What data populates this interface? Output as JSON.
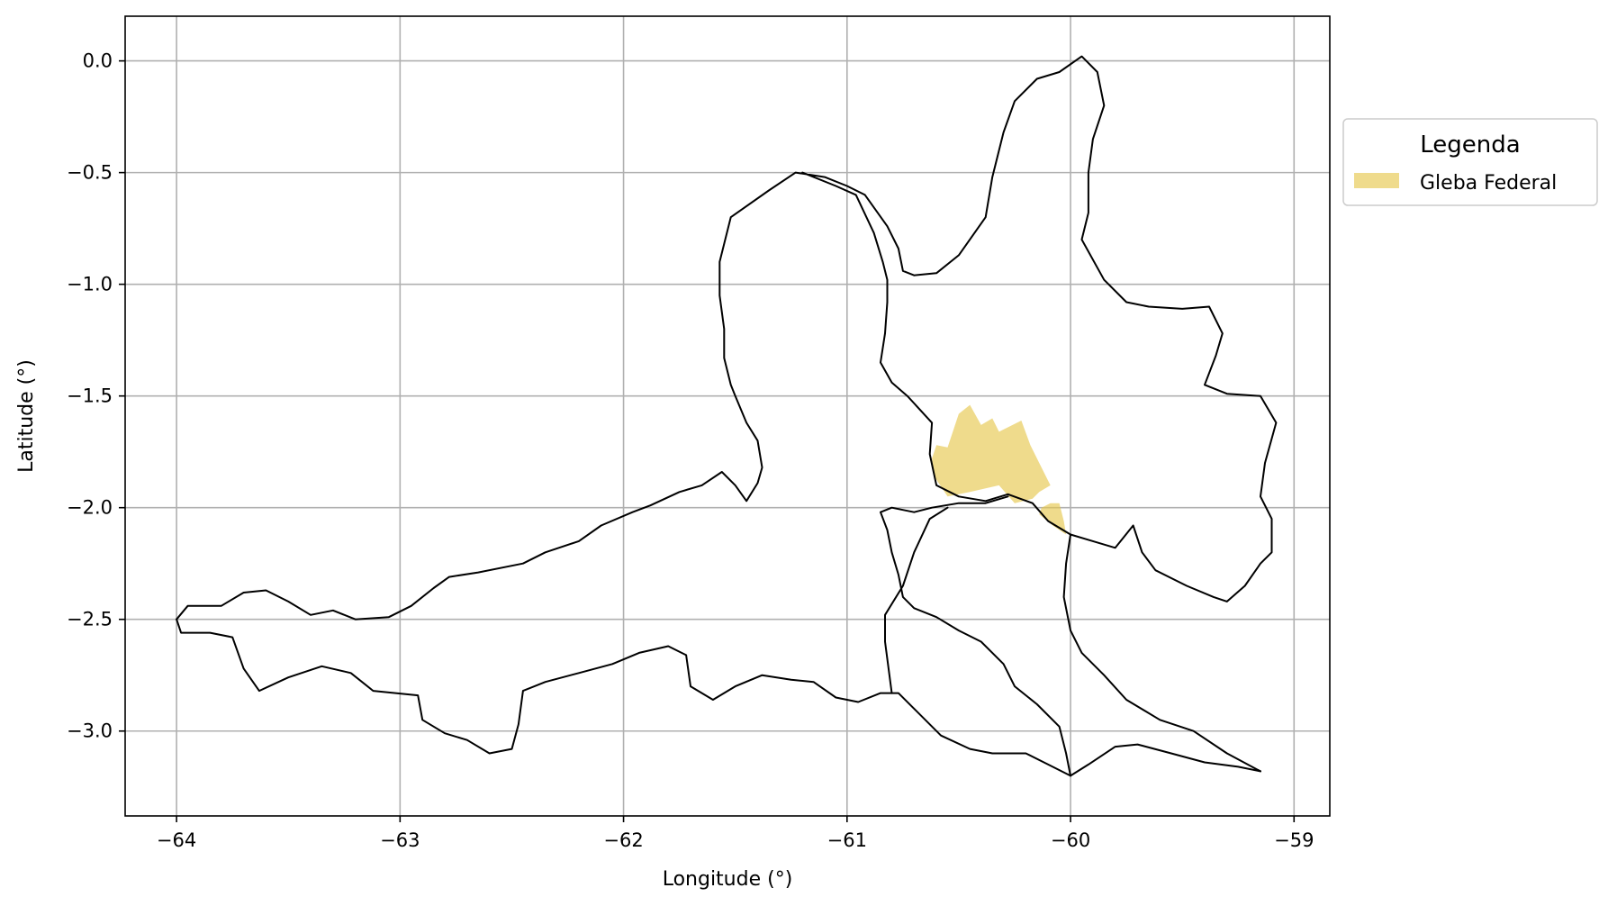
{
  "chart_data": {
    "type": "map",
    "xlabel": "Longitude (°)",
    "ylabel": "Latitude (°)",
    "xlim": [
      -64.23,
      -58.84
    ],
    "ylim": [
      -3.38,
      0.2
    ],
    "x_ticks": [
      -64,
      -63,
      -62,
      -61,
      -60,
      -59
    ],
    "y_ticks": [
      0.0,
      -0.5,
      -1.0,
      -1.5,
      -2.0,
      -2.5,
      -3.0
    ],
    "x_tick_labels": [
      "−64",
      "−63",
      "−62",
      "−61",
      "−60",
      "−59"
    ],
    "y_tick_labels": [
      "0.0",
      "−0.5",
      "−1.0",
      "−1.5",
      "−2.0",
      "−2.5",
      "−3.0"
    ],
    "grid": true,
    "legend": {
      "title": "Legenda",
      "placement": "outside-right-top",
      "entries": [
        {
          "label": "Gleba Federal",
          "color": "#e6c84f"
        }
      ]
    },
    "layers": [
      {
        "name": "municipal-boundaries",
        "color": "#000000",
        "polygons": [
          [
            [
              -64.0,
              -2.5
            ],
            [
              -63.95,
              -2.44
            ],
            [
              -63.8,
              -2.44
            ],
            [
              -63.7,
              -2.38
            ],
            [
              -63.6,
              -2.37
            ],
            [
              -63.5,
              -2.42
            ],
            [
              -63.4,
              -2.48
            ],
            [
              -63.3,
              -2.46
            ],
            [
              -63.2,
              -2.5
            ],
            [
              -63.05,
              -2.49
            ],
            [
              -62.95,
              -2.44
            ],
            [
              -62.85,
              -2.36
            ],
            [
              -62.78,
              -2.31
            ],
            [
              -62.65,
              -2.29
            ],
            [
              -62.45,
              -2.25
            ],
            [
              -62.35,
              -2.2
            ],
            [
              -62.2,
              -2.15
            ],
            [
              -62.1,
              -2.08
            ],
            [
              -61.96,
              -2.02
            ],
            [
              -61.88,
              -1.99
            ],
            [
              -61.75,
              -1.93
            ],
            [
              -61.65,
              -1.9
            ],
            [
              -61.56,
              -1.84
            ],
            [
              -61.5,
              -1.9
            ],
            [
              -61.45,
              -1.97
            ],
            [
              -61.4,
              -1.89
            ],
            [
              -61.38,
              -1.82
            ],
            [
              -61.4,
              -1.7
            ],
            [
              -61.45,
              -1.62
            ],
            [
              -61.5,
              -1.5
            ],
            [
              -61.52,
              -1.45
            ],
            [
              -61.55,
              -1.33
            ],
            [
              -61.55,
              -1.2
            ],
            [
              -61.57,
              -1.05
            ],
            [
              -61.57,
              -0.9
            ],
            [
              -61.52,
              -0.7
            ],
            [
              -61.35,
              -0.58
            ],
            [
              -61.23,
              -0.5
            ],
            [
              -61.1,
              -0.52
            ],
            [
              -61.0,
              -0.56
            ],
            [
              -60.92,
              -0.6
            ],
            [
              -60.82,
              -0.74
            ],
            [
              -60.77,
              -0.84
            ],
            [
              -60.75,
              -0.94
            ],
            [
              -60.7,
              -0.96
            ],
            [
              -60.6,
              -0.95
            ],
            [
              -60.5,
              -0.87
            ],
            [
              -60.38,
              -0.7
            ],
            [
              -60.35,
              -0.52
            ],
            [
              -60.3,
              -0.32
            ],
            [
              -60.25,
              -0.18
            ],
            [
              -60.15,
              -0.08
            ],
            [
              -60.05,
              -0.05
            ],
            [
              -59.95,
              0.02
            ],
            [
              -59.88,
              -0.05
            ],
            [
              -59.85,
              -0.2
            ],
            [
              -59.9,
              -0.35
            ],
            [
              -59.92,
              -0.5
            ],
            [
              -59.92,
              -0.68
            ],
            [
              -59.95,
              -0.8
            ],
            [
              -59.85,
              -0.98
            ],
            [
              -59.75,
              -1.08
            ],
            [
              -59.65,
              -1.1
            ],
            [
              -59.5,
              -1.11
            ],
            [
              -59.38,
              -1.1
            ],
            [
              -59.32,
              -1.22
            ],
            [
              -59.35,
              -1.32
            ],
            [
              -59.4,
              -1.45
            ],
            [
              -59.3,
              -1.49
            ],
            [
              -59.15,
              -1.5
            ],
            [
              -59.08,
              -1.62
            ],
            [
              -59.13,
              -1.8
            ],
            [
              -59.15,
              -1.95
            ],
            [
              -59.1,
              -2.05
            ],
            [
              -59.1,
              -2.2
            ],
            [
              -59.15,
              -2.25
            ],
            [
              -59.22,
              -2.35
            ],
            [
              -59.3,
              -2.42
            ],
            [
              -59.36,
              -2.4
            ],
            [
              -59.48,
              -2.35
            ],
            [
              -59.62,
              -2.28
            ],
            [
              -59.68,
              -2.2
            ],
            [
              -59.72,
              -2.08
            ],
            [
              -59.8,
              -2.18
            ],
            [
              -59.9,
              -2.15
            ],
            [
              -60.0,
              -2.12
            ],
            [
              -60.1,
              -2.06
            ],
            [
              -60.17,
              -1.98
            ],
            [
              -60.28,
              -1.94
            ],
            [
              -60.38,
              -1.97
            ],
            [
              -60.5,
              -1.95
            ],
            [
              -60.6,
              -1.9
            ],
            [
              -60.63,
              -1.76
            ],
            [
              -60.62,
              -1.62
            ],
            [
              -60.73,
              -1.5
            ],
            [
              -60.8,
              -1.44
            ],
            [
              -60.85,
              -1.35
            ],
            [
              -60.83,
              -1.22
            ],
            [
              -60.82,
              -1.08
            ],
            [
              -60.82,
              -0.98
            ],
            [
              -60.84,
              -0.9
            ],
            [
              -60.88,
              -0.77
            ],
            [
              -60.96,
              -0.6
            ],
            [
              -61.05,
              -0.56
            ],
            [
              -61.2,
              -0.5
            ]
          ],
          [
            [
              -64.0,
              -2.5
            ],
            [
              -63.98,
              -2.56
            ],
            [
              -63.85,
              -2.56
            ],
            [
              -63.75,
              -2.58
            ],
            [
              -63.7,
              -2.72
            ],
            [
              -63.63,
              -2.82
            ],
            [
              -63.5,
              -2.76
            ],
            [
              -63.35,
              -2.71
            ],
            [
              -63.22,
              -2.74
            ],
            [
              -63.12,
              -2.82
            ],
            [
              -63.02,
              -2.83
            ],
            [
              -62.92,
              -2.84
            ],
            [
              -62.9,
              -2.95
            ],
            [
              -62.8,
              -3.01
            ],
            [
              -62.7,
              -3.04
            ],
            [
              -62.6,
              -3.1
            ],
            [
              -62.5,
              -3.08
            ],
            [
              -62.47,
              -2.97
            ],
            [
              -62.45,
              -2.82
            ],
            [
              -62.35,
              -2.78
            ],
            [
              -62.2,
              -2.74
            ],
            [
              -62.05,
              -2.7
            ],
            [
              -61.93,
              -2.65
            ],
            [
              -61.8,
              -2.62
            ],
            [
              -61.72,
              -2.66
            ],
            [
              -61.7,
              -2.8
            ],
            [
              -61.6,
              -2.86
            ],
            [
              -61.5,
              -2.8
            ],
            [
              -61.38,
              -2.75
            ],
            [
              -61.25,
              -2.77
            ],
            [
              -61.15,
              -2.78
            ],
            [
              -61.05,
              -2.85
            ],
            [
              -60.95,
              -2.87
            ],
            [
              -60.85,
              -2.83
            ],
            [
              -60.77,
              -2.83
            ],
            [
              -60.7,
              -2.9
            ],
            [
              -60.58,
              -3.02
            ],
            [
              -60.45,
              -3.08
            ],
            [
              -60.35,
              -3.1
            ],
            [
              -60.2,
              -3.1
            ],
            [
              -60.1,
              -3.15
            ],
            [
              -60.0,
              -3.2
            ],
            [
              -59.92,
              -3.15
            ],
            [
              -59.8,
              -3.07
            ],
            [
              -59.7,
              -3.06
            ],
            [
              -59.55,
              -3.1
            ],
            [
              -59.4,
              -3.14
            ],
            [
              -59.25,
              -3.16
            ],
            [
              -59.15,
              -3.18
            ]
          ],
          [
            [
              -60.0,
              -3.2
            ],
            [
              -60.02,
              -3.1
            ],
            [
              -60.05,
              -2.98
            ],
            [
              -60.15,
              -2.88
            ],
            [
              -60.25,
              -2.8
            ],
            [
              -60.3,
              -2.7
            ],
            [
              -60.35,
              -2.65
            ],
            [
              -60.4,
              -2.6
            ],
            [
              -60.5,
              -2.55
            ],
            [
              -60.6,
              -2.49
            ],
            [
              -60.7,
              -2.45
            ],
            [
              -60.75,
              -2.4
            ],
            [
              -60.77,
              -2.3
            ],
            [
              -60.8,
              -2.2
            ],
            [
              -60.82,
              -2.1
            ],
            [
              -60.85,
              -2.02
            ],
            [
              -60.8,
              -2.0
            ],
            [
              -60.7,
              -2.02
            ],
            [
              -60.62,
              -2.0
            ],
            [
              -60.5,
              -1.98
            ],
            [
              -60.38,
              -1.98
            ],
            [
              -60.28,
              -1.95
            ]
          ],
          [
            [
              -60.8,
              -2.83
            ],
            [
              -60.83,
              -2.6
            ],
            [
              -60.83,
              -2.48
            ],
            [
              -60.75,
              -2.35
            ],
            [
              -60.7,
              -2.2
            ],
            [
              -60.63,
              -2.05
            ],
            [
              -60.55,
              -2.0
            ]
          ],
          [
            [
              -60.0,
              -2.12
            ],
            [
              -60.02,
              -2.25
            ],
            [
              -60.03,
              -2.4
            ],
            [
              -60.0,
              -2.55
            ],
            [
              -59.95,
              -2.65
            ],
            [
              -59.85,
              -2.75
            ],
            [
              -59.75,
              -2.86
            ],
            [
              -59.6,
              -2.95
            ],
            [
              -59.45,
              -3.0
            ],
            [
              -59.3,
              -3.1
            ],
            [
              -59.15,
              -3.18
            ]
          ]
        ]
      },
      {
        "name": "Gleba Federal",
        "color": "#e6c84f",
        "polygons": [
          [
            [
              -60.6,
              -1.72
            ],
            [
              -60.55,
              -1.73
            ],
            [
              -60.5,
              -1.58
            ],
            [
              -60.45,
              -1.54
            ],
            [
              -60.4,
              -1.63
            ],
            [
              -60.35,
              -1.6
            ],
            [
              -60.32,
              -1.66
            ],
            [
              -60.22,
              -1.61
            ],
            [
              -60.18,
              -1.72
            ],
            [
              -60.14,
              -1.8
            ],
            [
              -60.09,
              -1.9
            ],
            [
              -60.14,
              -1.93
            ],
            [
              -60.17,
              -1.96
            ],
            [
              -60.25,
              -1.98
            ],
            [
              -60.32,
              -1.9
            ],
            [
              -60.45,
              -1.93
            ],
            [
              -60.55,
              -1.95
            ],
            [
              -60.61,
              -1.86
            ],
            [
              -60.62,
              -1.78
            ]
          ],
          [
            [
              -60.13,
              -2.0
            ],
            [
              -60.09,
              -1.98
            ],
            [
              -60.05,
              -1.98
            ],
            [
              -60.03,
              -2.06
            ],
            [
              -60.02,
              -2.12
            ],
            [
              -60.08,
              -2.08
            ],
            [
              -60.14,
              -2.03
            ]
          ]
        ]
      }
    ]
  }
}
